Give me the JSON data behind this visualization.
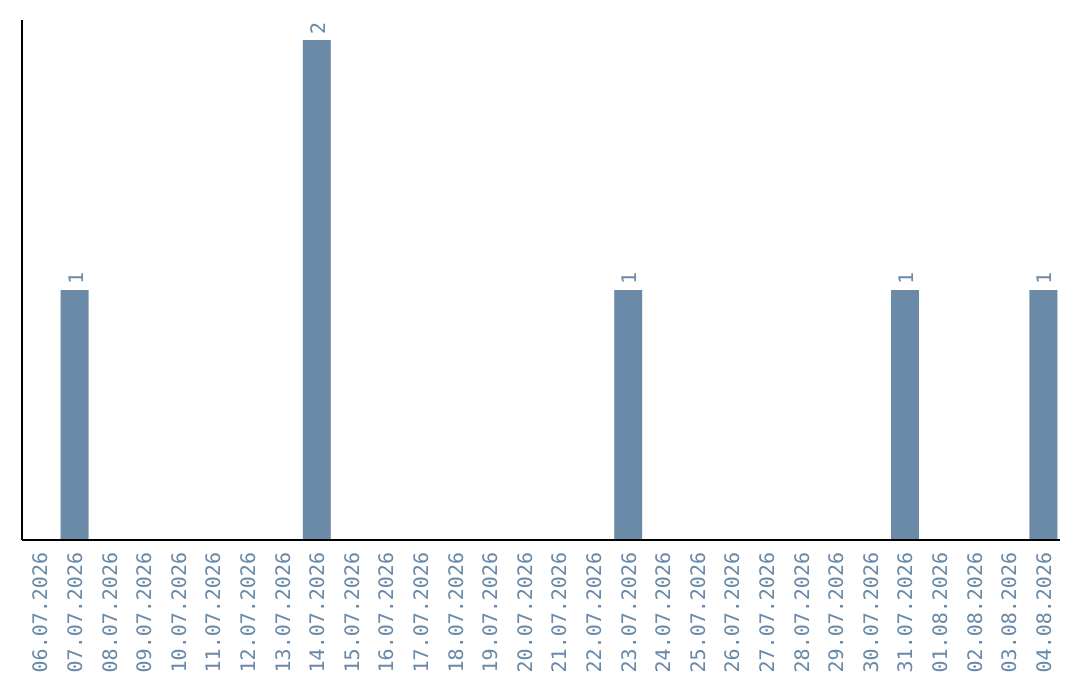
{
  "chart_data": {
    "type": "bar",
    "categories": [
      "06.07.2026",
      "07.07.2026",
      "08.07.2026",
      "09.07.2026",
      "10.07.2026",
      "11.07.2026",
      "12.07.2026",
      "13.07.2026",
      "14.07.2026",
      "15.07.2026",
      "16.07.2026",
      "17.07.2026",
      "18.07.2026",
      "19.07.2026",
      "20.07.2026",
      "21.07.2026",
      "22.07.2026",
      "23.07.2026",
      "24.07.2026",
      "25.07.2026",
      "26.07.2026",
      "27.07.2026",
      "28.07.2026",
      "29.07.2026",
      "30.07.2026",
      "31.07.2026",
      "01.08.2026",
      "02.08.2026",
      "03.08.2026",
      "04.08.2026"
    ],
    "values": [
      0,
      1,
      0,
      0,
      0,
      0,
      0,
      0,
      2,
      0,
      0,
      0,
      0,
      0,
      0,
      0,
      0,
      1,
      0,
      0,
      0,
      0,
      0,
      0,
      0,
      1,
      0,
      0,
      0,
      1
    ],
    "value_labels": [
      null,
      "1",
      null,
      null,
      null,
      null,
      null,
      null,
      "2",
      null,
      null,
      null,
      null,
      null,
      null,
      null,
      null,
      "1",
      null,
      null,
      null,
      null,
      null,
      null,
      null,
      "1",
      null,
      null,
      null,
      "1"
    ],
    "color": "#6a8aa8",
    "tick_labels": "x",
    "grid": false,
    "legend": false
  }
}
